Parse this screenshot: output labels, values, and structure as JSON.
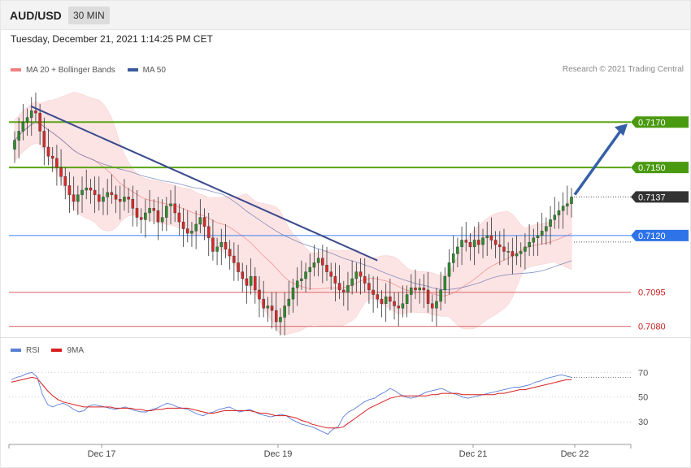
{
  "header": {
    "symbol": "AUD/USD",
    "timeframe": "30 MIN"
  },
  "datetime": "Tuesday, December 21, 2021 1:14:25 PM CET",
  "legend": {
    "items": [
      {
        "label": "MA 20 + Bollinger Bands",
        "color": "#f08080"
      },
      {
        "label": "MA 50",
        "color": "#3a5a9c"
      }
    ],
    "credit": "Research © 2021 Trading Central"
  },
  "rsi_legend": {
    "items": [
      {
        "label": "RSI",
        "color": "#5b7fd6"
      },
      {
        "label": "9MA",
        "color": "#d81e1e"
      }
    ]
  },
  "colors": {
    "green_level": "#5aa514",
    "blue_level": "#3b82f0",
    "red_level": "#e08080",
    "current_price": "#333333",
    "arrow": "#3560a8",
    "up_candle": "#2e8b2e",
    "down_candle": "#d42a2a",
    "band_fill": "#fde0e0",
    "ma20": "#f08080",
    "ma50": "#5a6fae",
    "trendline": "#3a4a8c"
  },
  "chart_data": [
    {
      "type": "candlestick",
      "title": "AUD/USD 30 MIN",
      "x_ticks": [
        "Dec 17",
        "Dec 19",
        "Dec 21",
        "Dec 22"
      ],
      "ylim": [
        0.7077,
        0.7188
      ],
      "levels": [
        {
          "value": 0.717,
          "label": "0.7170",
          "kind": "resistance"
        },
        {
          "value": 0.715,
          "label": "0.7150",
          "kind": "resistance"
        },
        {
          "value": 0.7137,
          "label": "0.7137",
          "kind": "current"
        },
        {
          "value": 0.712,
          "label": "0.7120",
          "kind": "pivot"
        },
        {
          "value": 0.7095,
          "label": "0.7095",
          "kind": "support"
        },
        {
          "value": 0.708,
          "label": "0.7080",
          "kind": "support"
        }
      ],
      "close_series": [
        0.7162,
        0.7166,
        0.717,
        0.7172,
        0.7175,
        0.7174,
        0.7166,
        0.7159,
        0.7155,
        0.7154,
        0.715,
        0.7146,
        0.7142,
        0.7138,
        0.7135,
        0.7138,
        0.714,
        0.7141,
        0.714,
        0.7138,
        0.7135,
        0.7137,
        0.7139,
        0.7138,
        0.7136,
        0.7135,
        0.7137,
        0.7136,
        0.7132,
        0.7128,
        0.7127,
        0.713,
        0.7132,
        0.7131,
        0.7126,
        0.7128,
        0.7133,
        0.7134,
        0.713,
        0.7126,
        0.7123,
        0.7121,
        0.7122,
        0.7125,
        0.7128,
        0.7124,
        0.7119,
        0.7113,
        0.7115,
        0.7117,
        0.7114,
        0.7111,
        0.7108,
        0.7104,
        0.7101,
        0.7098,
        0.7102,
        0.7096,
        0.7092,
        0.7088,
        0.7089,
        0.7087,
        0.7082,
        0.7084,
        0.7089,
        0.7092,
        0.7097,
        0.71,
        0.7101,
        0.7104,
        0.7106,
        0.7108,
        0.711,
        0.7107,
        0.7104,
        0.7102,
        0.7099,
        0.7096,
        0.7095,
        0.7098,
        0.7101,
        0.7104,
        0.7102,
        0.7099,
        0.7096,
        0.7094,
        0.7092,
        0.709,
        0.7093,
        0.7091,
        0.7089,
        0.7088,
        0.709,
        0.7094,
        0.7097,
        0.7096,
        0.7097,
        0.7096,
        0.709,
        0.7088,
        0.7091,
        0.7096,
        0.7102,
        0.7108,
        0.7112,
        0.7115,
        0.7118,
        0.7117,
        0.7115,
        0.7118,
        0.7116,
        0.7119,
        0.712,
        0.7118,
        0.7116,
        0.7115,
        0.7113,
        0.7113,
        0.7111,
        0.7112,
        0.7113,
        0.7115,
        0.7117,
        0.7119,
        0.712,
        0.7122,
        0.7124,
        0.7127,
        0.7129,
        0.7131,
        0.7133,
        0.7134,
        0.7137
      ],
      "annotations": [
        {
          "type": "trendline",
          "from": [
            0,
            0.7177
          ],
          "to": [
            86,
            0.7109
          ]
        },
        {
          "type": "arrow",
          "from": [
            131,
            0.7141
          ],
          "to": [
            150,
            0.717
          ]
        }
      ]
    },
    {
      "type": "line",
      "title": "RSI",
      "ylim": [
        15,
        82
      ],
      "y_ticks": [
        "70",
        "50",
        "30"
      ],
      "series": [
        {
          "name": "RSI",
          "values": [
            64,
            66,
            67,
            69,
            70,
            66,
            52,
            44,
            42,
            44,
            45,
            43,
            40,
            38,
            39,
            43,
            44,
            43,
            42,
            41,
            40,
            41,
            42,
            40,
            39,
            38,
            38,
            40,
            41,
            43,
            45,
            44,
            42,
            41,
            40,
            38,
            36,
            35,
            37,
            38,
            40,
            41,
            42,
            40,
            38,
            39,
            40,
            38,
            36,
            35,
            34,
            35,
            36,
            35,
            32,
            30,
            28,
            27,
            26,
            24,
            22,
            20,
            24,
            26,
            34,
            38,
            40,
            43,
            46,
            48,
            49,
            52,
            54,
            57,
            55,
            52,
            50,
            49,
            50,
            52,
            54,
            55,
            56,
            57,
            55,
            53,
            52,
            50,
            49,
            50,
            51,
            52,
            53,
            54,
            55,
            56,
            57,
            58,
            58,
            59,
            60,
            62,
            63,
            65,
            66,
            67,
            68,
            67,
            66
          ],
          "color": "#5b7fd6"
        },
        {
          "name": "9MA",
          "values": [
            62,
            63,
            64,
            65,
            66,
            65,
            60,
            55,
            51,
            48,
            46,
            45,
            44,
            43,
            42,
            42,
            42,
            42,
            42,
            42,
            41,
            41,
            41,
            41,
            40,
            40,
            39,
            39,
            40,
            40,
            41,
            41,
            41,
            41,
            41,
            40,
            39,
            38,
            37,
            37,
            38,
            39,
            39,
            39,
            39,
            39,
            39,
            38,
            37,
            37,
            36,
            35,
            35,
            35,
            34,
            33,
            31,
            30,
            28,
            27,
            26,
            25,
            25,
            25,
            26,
            29,
            32,
            35,
            38,
            41,
            43,
            45,
            47,
            49,
            50,
            51,
            51,
            51,
            51,
            51,
            51,
            52,
            52,
            53,
            53,
            53,
            53,
            52,
            52,
            52,
            52,
            52,
            52,
            52,
            53,
            53,
            54,
            55,
            56,
            56,
            57,
            58,
            59,
            60,
            61,
            62,
            63,
            64,
            64
          ],
          "color": "#d81e1e"
        }
      ]
    }
  ]
}
